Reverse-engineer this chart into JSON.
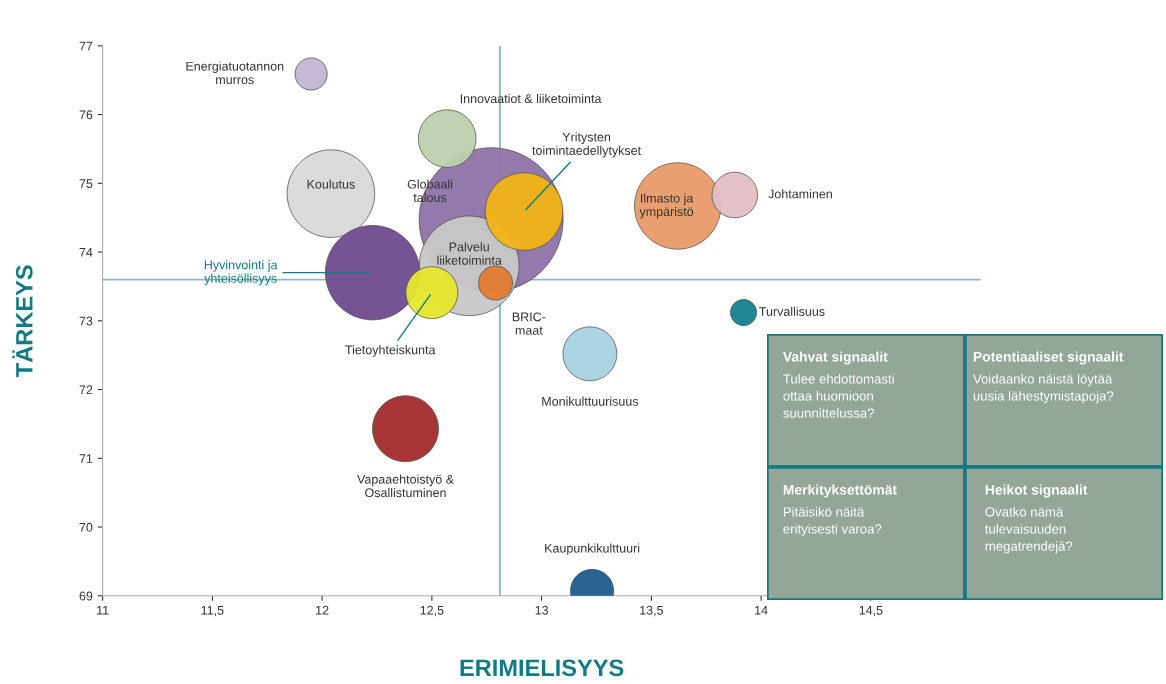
{
  "chart_data": {
    "type": "bubble",
    "xlabel": "ERIMIELISYYS",
    "ylabel": "TÄRKEYS",
    "xlim": [
      11,
      15
    ],
    "ylim": [
      69,
      77
    ],
    "xticks": [
      11,
      {
        "value": 11.5,
        "label": "11,5"
      },
      12,
      {
        "value": 12.5,
        "label": "12,5"
      },
      13,
      {
        "value": 13.5,
        "label": "13,5"
      },
      14,
      {
        "value": 14.5,
        "label": "14,5"
      }
    ],
    "yticks": [
      69,
      70,
      71,
      72,
      73,
      74,
      75,
      76,
      77
    ],
    "grid": false,
    "series": [
      {
        "name": "Globaali\ntalous",
        "color": "#8e72a8",
        "x": [
          12.77
        ],
        "values": [
          74.47
        ],
        "sizes": [
          1
        ]
      },
      {
        "name": "Energiatuotannon\nmurros",
        "color": "#c2b5d3",
        "x": [
          11.95
        ],
        "values": [
          76.59
        ],
        "sizes": [
          0.05
        ]
      },
      {
        "name": "Innovaatiot & liiketoiminta",
        "color": "#bcd0ad",
        "x": [
          12.57
        ],
        "values": [
          75.65
        ],
        "sizes": [
          0.16
        ]
      },
      {
        "name": "Koulutus",
        "color": "#d9d9d9",
        "x": [
          12.04
        ],
        "values": [
          74.85
        ],
        "sizes": [
          0.37
        ]
      },
      {
        "name": "Palvelu\nliiketoiminta",
        "color": "#c8c8c8",
        "x": [
          12.67
        ],
        "values": [
          73.8
        ],
        "sizes": [
          0.48
        ]
      },
      {
        "name": "Yritysten\ntoimintaedellytykset",
        "color": "#f2b416",
        "x": [
          12.92
        ],
        "values": [
          74.59
        ],
        "sizes": [
          0.29
        ]
      },
      {
        "name": "Hyvinvointi ja\nyhteisöllisyys",
        "color": "#6f4a8e",
        "x": [
          12.23
        ],
        "values": [
          73.7
        ],
        "sizes": [
          0.43
        ]
      },
      {
        "name": "Tietoyhteiskunta",
        "color": "#e6e62a",
        "x": [
          12.5
        ],
        "values": [
          73.41
        ],
        "sizes": [
          0.13
        ]
      },
      {
        "name": "BRIC-\nmaat",
        "color": "#e07b30",
        "x": [
          12.79
        ],
        "values": [
          73.55
        ],
        "sizes": [
          0.056
        ]
      },
      {
        "name": "Ilmasto ja\nympäristö",
        "color": "#e99a68",
        "x": [
          13.62
        ],
        "values": [
          74.67
        ],
        "sizes": [
          0.36
        ]
      },
      {
        "name": "Johtaminen",
        "color": "#e3bfc4",
        "x": [
          13.88
        ],
        "values": [
          74.83
        ],
        "sizes": [
          0.1
        ]
      },
      {
        "name": "Turvallisuus",
        "color": "#137f8e",
        "x": [
          13.92
        ],
        "values": [
          73.12
        ],
        "sizes": [
          0.033
        ]
      },
      {
        "name": "Monikulttuurisuus",
        "color": "#a9d2e0",
        "x": [
          13.22
        ],
        "values": [
          72.52
        ],
        "sizes": [
          0.14
        ]
      },
      {
        "name": "Kaupunkikulttuuri",
        "color": "#1c5b8e",
        "x": [
          13.23
        ],
        "values": [
          69.07
        ],
        "sizes": [
          0.09
        ]
      },
      {
        "name": "Vapaaehtoistyö &\nOsallistuminen",
        "color": "#a32a2a",
        "x": [
          12.38
        ],
        "values": [
          71.43
        ],
        "sizes": [
          0.21
        ]
      }
    ],
    "ref_lines": [
      {
        "axis": "x",
        "value": 12.81,
        "color": "#8fb8bd"
      },
      {
        "axis": "y",
        "value": 73.6,
        "color": "#8fb8bd"
      }
    ],
    "annotations": [
      "Vahvat signaalit",
      "Tulee ehdottomasti\nottaa huomioon\nsuunnittelussa?",
      "Potentiaaliset signaalit",
      "Voidaanko näistä löytää\nuusia lähestymistapoja?",
      "Merkityksettömät",
      "Pitäisikö näitä\nerityisesti varoa?",
      "Heikot signaalit",
      "Ovatko nämä\ntulevaisuuden\nmegatrendejä?"
    ]
  }
}
